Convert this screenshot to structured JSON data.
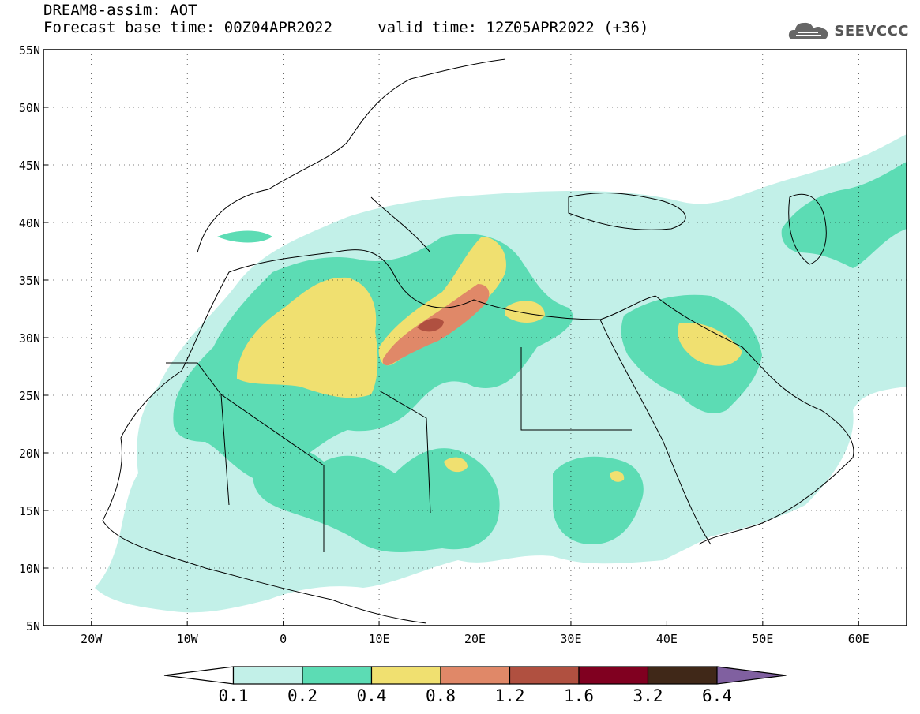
{
  "header": {
    "line1": "DREAM8-assim: AOT",
    "line2": "Forecast base time: 00Z04APR2022     valid time: 12Z05APR2022 (+36)"
  },
  "logo": {
    "text": "SEEVCCC",
    "icon": "cloud-icon"
  },
  "map": {
    "projection": "lat-lon",
    "lat_range": [
      5,
      55
    ],
    "lon_range": [
      -25,
      65
    ],
    "lat_ticks": [
      "55N",
      "50N",
      "45N",
      "40N",
      "35N",
      "30N",
      "25N",
      "20N",
      "15N",
      "10N",
      "5N"
    ],
    "lon_ticks": [
      "20W",
      "10W",
      "0",
      "10E",
      "20E",
      "30E",
      "40E",
      "50E",
      "60E"
    ],
    "grid": "dotted"
  },
  "colorbar": {
    "labels": [
      "0.1",
      "0.2",
      "0.4",
      "0.8",
      "1.2",
      "1.6",
      "3.2",
      "6.4"
    ],
    "colors": [
      "#ffffff",
      "#c2f0e8",
      "#5cdcb4",
      "#f0e070",
      "#e08868",
      "#b05040",
      "#800020",
      "#402818",
      "#8060a0"
    ]
  }
}
